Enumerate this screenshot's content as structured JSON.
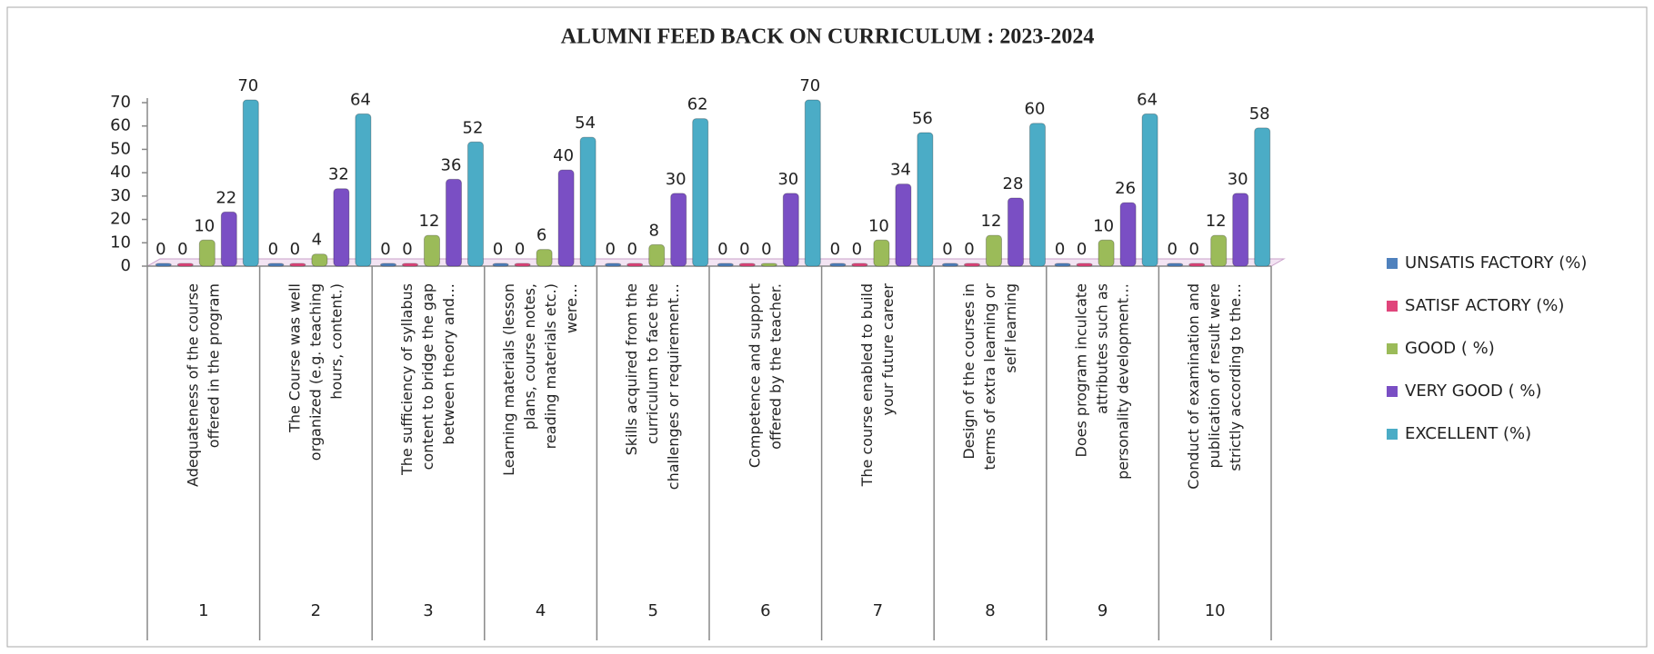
{
  "chart_data": {
    "type": "bar",
    "title": "ALUMNI   FEED BACK ON CURRICULUM : 2023-2024",
    "categories": [
      "Adequateness of the course offered in the program",
      "The Course was well organized (e.g. teaching hours, content.)",
      "The sufficiency of syllabus content to bridge the gap between theory and…",
      "Learning materials (lesson plans, course notes, reading materials etc.) were…",
      "Skills acquired from the curriculum to face the challenges or requirement…",
      "Competence and support offered by the teacher.",
      "The course enabled to build your future career",
      "Design of the courses in terms of extra learning or self learning",
      "Does program inculcate attributes such as personality development…",
      "Conduct of examination and publication of result were strictly according to the…"
    ],
    "category_numbers": [
      1,
      2,
      3,
      4,
      5,
      6,
      7,
      8,
      9,
      10
    ],
    "series": [
      {
        "name": "UNSATIS FACTORY (%)",
        "color": "#4f81bd",
        "values": [
          0,
          0,
          0,
          0,
          0,
          0,
          0,
          0,
          0,
          0
        ]
      },
      {
        "name": "SATISF ACTORY (%)",
        "color": "#e0457b",
        "values": [
          0,
          0,
          0,
          0,
          0,
          0,
          0,
          0,
          0,
          0
        ]
      },
      {
        "name": "GOOD ( %)",
        "color": "#9bbb59",
        "values": [
          10,
          4,
          12,
          6,
          8,
          0,
          10,
          12,
          10,
          12
        ]
      },
      {
        "name": "VERY GOOD ( %)",
        "color": "#7a4fc4",
        "values": [
          22,
          32,
          36,
          40,
          30,
          30,
          34,
          28,
          26,
          30
        ]
      },
      {
        "name": "EXCELLENT  (%)",
        "color": "#4bacc6",
        "values": [
          70,
          64,
          52,
          54,
          62,
          70,
          56,
          60,
          64,
          58
        ]
      }
    ],
    "ylim": [
      0,
      70
    ],
    "yticks": [
      0,
      10,
      20,
      30,
      40,
      50,
      60,
      70
    ],
    "grid": false,
    "legend": "right"
  }
}
